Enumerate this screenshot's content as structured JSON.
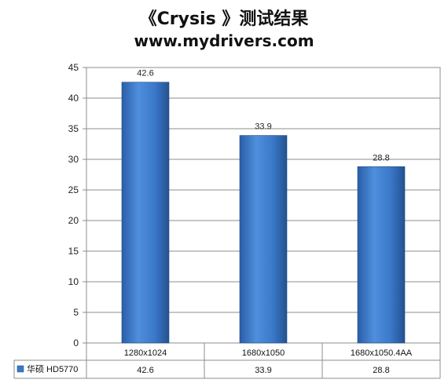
{
  "title": {
    "line1": "《Crysis 》测试结果",
    "line2": "www.mydrivers.com"
  },
  "chart_data": {
    "type": "bar",
    "categories": [
      "1280x1024",
      "1680x1050",
      "1680x1050.4AA"
    ],
    "series": [
      {
        "name": "华硕 HD5770",
        "values": [
          42.6,
          33.9,
          28.8
        ],
        "color": "#3a78c9"
      }
    ],
    "ylim": [
      0,
      45
    ],
    "yticks": [
      0,
      5,
      10,
      15,
      20,
      25,
      30,
      35,
      40,
      45
    ],
    "grid": true,
    "data_labels": [
      "42.6",
      "33.9",
      "28.8"
    ],
    "legend": "data-table"
  }
}
